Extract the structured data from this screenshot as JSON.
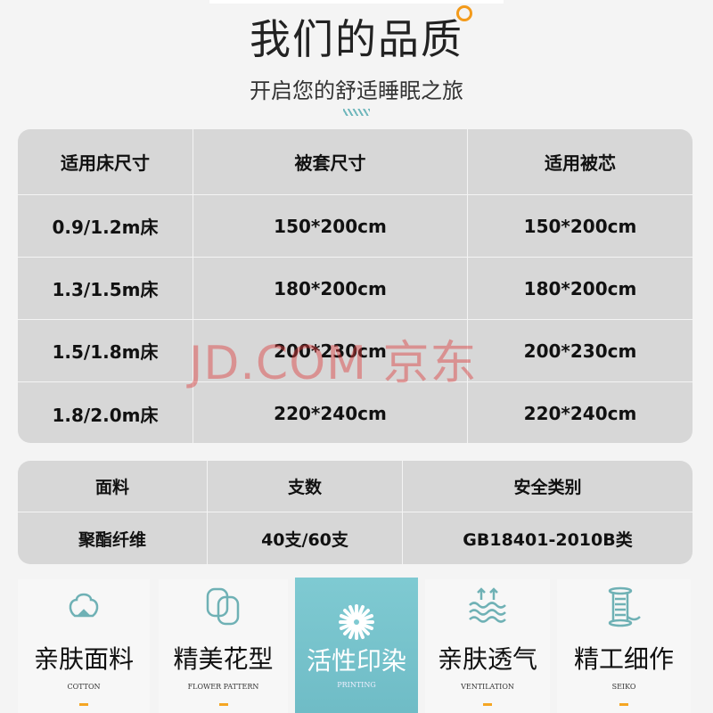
{
  "header": {
    "title": "我们的品质",
    "subtitle": "开启您的舒适睡眠之旅"
  },
  "size_table": {
    "headers": [
      "适用床尺寸",
      "被套尺寸",
      "适用被芯"
    ],
    "rows": [
      [
        "0.9/1.2m床",
        "150*200cm",
        "150*200cm"
      ],
      [
        "1.3/1.5m床",
        "180*200cm",
        "180*200cm"
      ],
      [
        "1.5/1.8m床",
        "200*230cm",
        "200*230cm"
      ],
      [
        "1.8/2.0m床",
        "220*240cm",
        "220*240cm"
      ]
    ]
  },
  "material_table": {
    "headers": [
      "面料",
      "支数",
      "安全类别"
    ],
    "rows": [
      [
        "聚酯纤维",
        "40支/60支",
        "GB18401-2010B类"
      ]
    ]
  },
  "watermark": "JD.COM 京东",
  "features": [
    {
      "cn": "亲肤面料",
      "en": "COTTON",
      "icon": "cotton-icon"
    },
    {
      "cn": "精美花型",
      "en": "FLOWER PATTERN",
      "icon": "pattern-icon"
    },
    {
      "cn": "活性印染",
      "en": "PRINTING",
      "icon": "flower-icon"
    },
    {
      "cn": "亲肤透气",
      "en": "VENTILATION",
      "icon": "ventilation-icon"
    },
    {
      "cn": "精工细作",
      "en": "SEIKO",
      "icon": "thread-spool-icon"
    }
  ],
  "colors": {
    "accent": "#f39a1a",
    "teal": "#6fb7bc",
    "table_bg": "#d7d7d7"
  }
}
